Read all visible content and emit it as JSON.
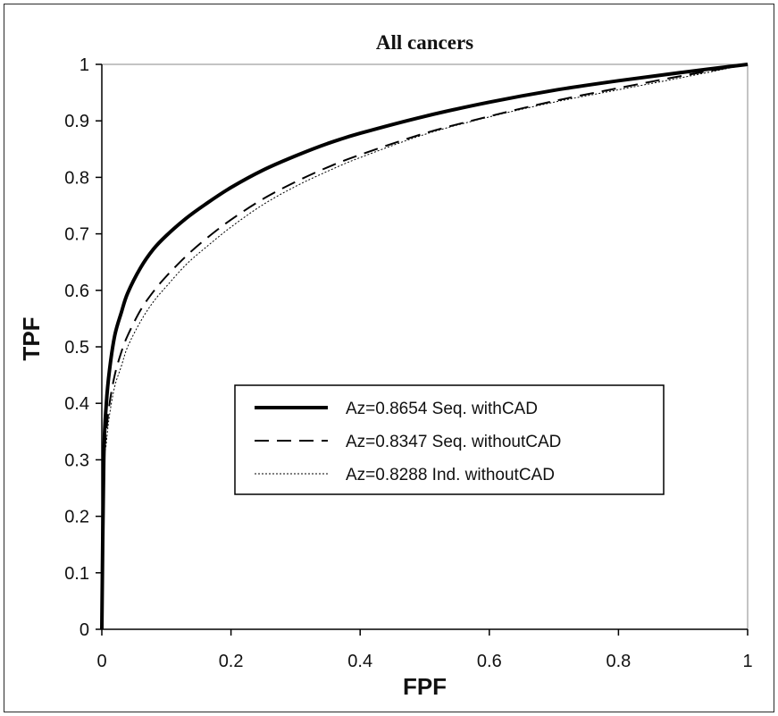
{
  "chart_data": {
    "type": "line",
    "title": "All cancers",
    "xlabel": "FPF",
    "ylabel": "TPF",
    "xlim": [
      0,
      1
    ],
    "ylim": [
      0,
      1
    ],
    "xticks": [
      0,
      0.2,
      0.4,
      0.6,
      0.8,
      1
    ],
    "xtick_labels": [
      "0",
      "0.2",
      "0.4",
      "0.6",
      "0.8",
      "1"
    ],
    "yticks": [
      0,
      0.1,
      0.2,
      0.3,
      0.4,
      0.5,
      0.6,
      0.7,
      0.8,
      0.9,
      1
    ],
    "ytick_labels": [
      "0",
      "0.1",
      "0.2",
      "0.3",
      "0.4",
      "0.5",
      "0.6",
      "0.7",
      "0.8",
      "0.9",
      "1"
    ],
    "grid": false,
    "legend_position": "center-right",
    "series": [
      {
        "name": "Az=0.8654 Seq. withCAD",
        "line_style": "solid-thick",
        "color": "#000000",
        "x": [
          0,
          0.003,
          0.007,
          0.012,
          0.02,
          0.03,
          0.04,
          0.06,
          0.08,
          0.1,
          0.13,
          0.16,
          0.2,
          0.25,
          0.3,
          0.35,
          0.4,
          0.5,
          0.6,
          0.7,
          0.8,
          0.9,
          1.0
        ],
        "y": [
          0,
          0.3,
          0.4,
          0.46,
          0.52,
          0.56,
          0.595,
          0.64,
          0.673,
          0.697,
          0.727,
          0.752,
          0.782,
          0.813,
          0.838,
          0.86,
          0.878,
          0.908,
          0.933,
          0.954,
          0.971,
          0.986,
          1.0
        ]
      },
      {
        "name": "Az=0.8347 Seq. withoutCAD",
        "line_style": "dashed",
        "color": "#000000",
        "x": [
          0,
          0.003,
          0.007,
          0.012,
          0.02,
          0.03,
          0.04,
          0.06,
          0.08,
          0.1,
          0.13,
          0.16,
          0.2,
          0.25,
          0.3,
          0.35,
          0.4,
          0.5,
          0.6,
          0.7,
          0.8,
          0.9,
          1.0
        ],
        "y": [
          0,
          0.28,
          0.35,
          0.4,
          0.45,
          0.49,
          0.52,
          0.565,
          0.598,
          0.625,
          0.66,
          0.69,
          0.725,
          0.762,
          0.792,
          0.818,
          0.84,
          0.878,
          0.908,
          0.935,
          0.958,
          0.98,
          1.0
        ]
      },
      {
        "name": "Az=0.8288 Ind. withoutCAD",
        "line_style": "dotted-thin",
        "color": "#000000",
        "x": [
          0,
          0.003,
          0.007,
          0.012,
          0.02,
          0.03,
          0.04,
          0.06,
          0.08,
          0.1,
          0.13,
          0.16,
          0.2,
          0.25,
          0.3,
          0.35,
          0.4,
          0.5,
          0.6,
          0.7,
          0.8,
          0.9,
          1.0
        ],
        "y": [
          0,
          0.27,
          0.33,
          0.38,
          0.43,
          0.465,
          0.5,
          0.545,
          0.58,
          0.607,
          0.645,
          0.675,
          0.712,
          0.752,
          0.784,
          0.811,
          0.835,
          0.876,
          0.907,
          0.933,
          0.955,
          0.977,
          1.0
        ]
      }
    ]
  }
}
